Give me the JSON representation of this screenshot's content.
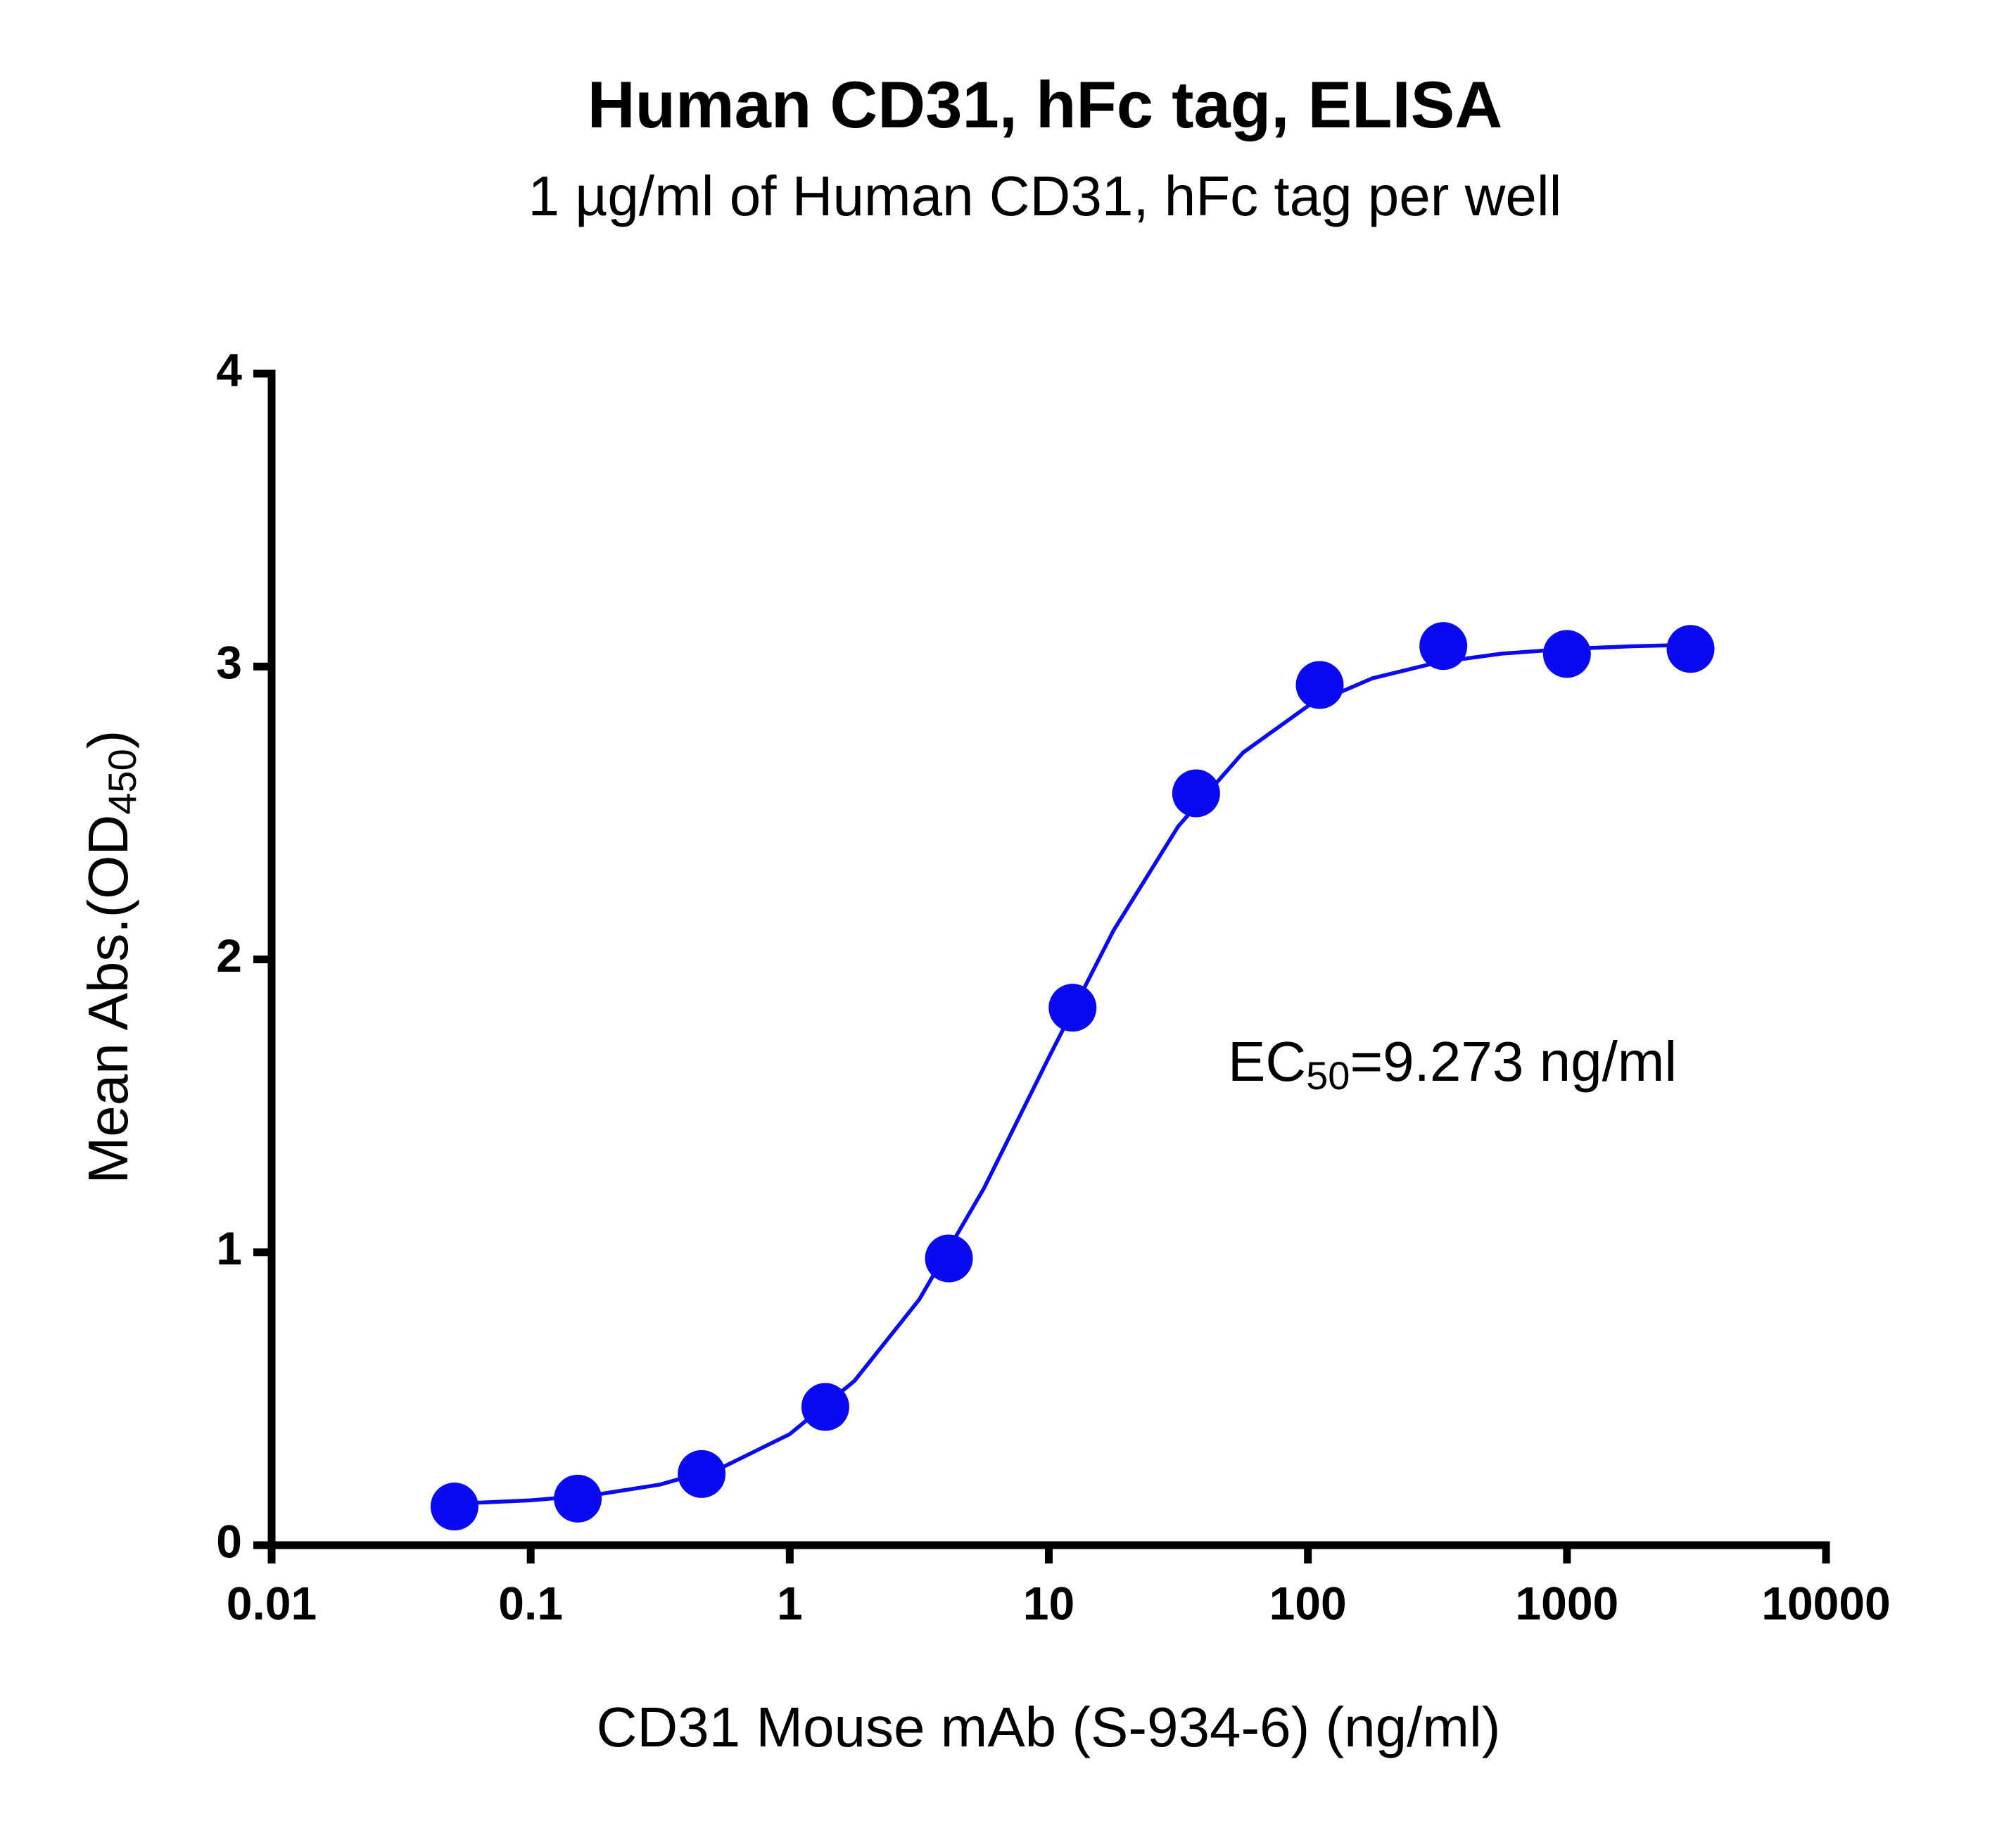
{
  "chart_data": {
    "type": "scatter",
    "title": "Human CD31, hFc tag, ELISA",
    "subtitle": "1 µg/ml of Human CD31, hFc tag per well",
    "x_label": "CD31 Mouse mAb (S-934-6) (ng/ml)",
    "y_label": {
      "text": "Mean Abs.(OD",
      "sub": "450",
      "end": ")"
    },
    "annotation": {
      "text": "EC",
      "sub": "50",
      "end": "=9.273 ng/ml"
    },
    "x_scale": "log",
    "color": "#0a0af0",
    "x": [
      0.0508,
      0.152,
      0.457,
      1.372,
      4.115,
      12.35,
      37.04,
      111.1,
      333.3,
      1000,
      3000
    ],
    "values": [
      0.132,
      0.159,
      0.243,
      0.472,
      0.979,
      1.835,
      2.567,
      2.937,
      3.07,
      3.043,
      3.06
    ],
    "curve": {
      "x": [
        0.0501,
        0.1,
        0.1778,
        0.3162,
        0.5623,
        1,
        1.778,
        3.162,
        5.623,
        10,
        17.78,
        31.62,
        56.23,
        100,
        177.8,
        316.2,
        562.3,
        1000,
        1778,
        3020
      ],
      "values": [
        0.141,
        0.153,
        0.172,
        0.207,
        0.27,
        0.379,
        0.561,
        0.839,
        1.219,
        1.665,
        2.099,
        2.455,
        2.706,
        2.865,
        2.96,
        3.014,
        3.044,
        3.06,
        3.069,
        3.074
      ]
    },
    "xlim": [
      0.01,
      10000
    ],
    "xticks": [
      0.01,
      0.1,
      1,
      10,
      100,
      1000,
      10000
    ],
    "ylim": [
      0,
      4
    ],
    "yticks": [
      0,
      1,
      2,
      3,
      4
    ]
  }
}
